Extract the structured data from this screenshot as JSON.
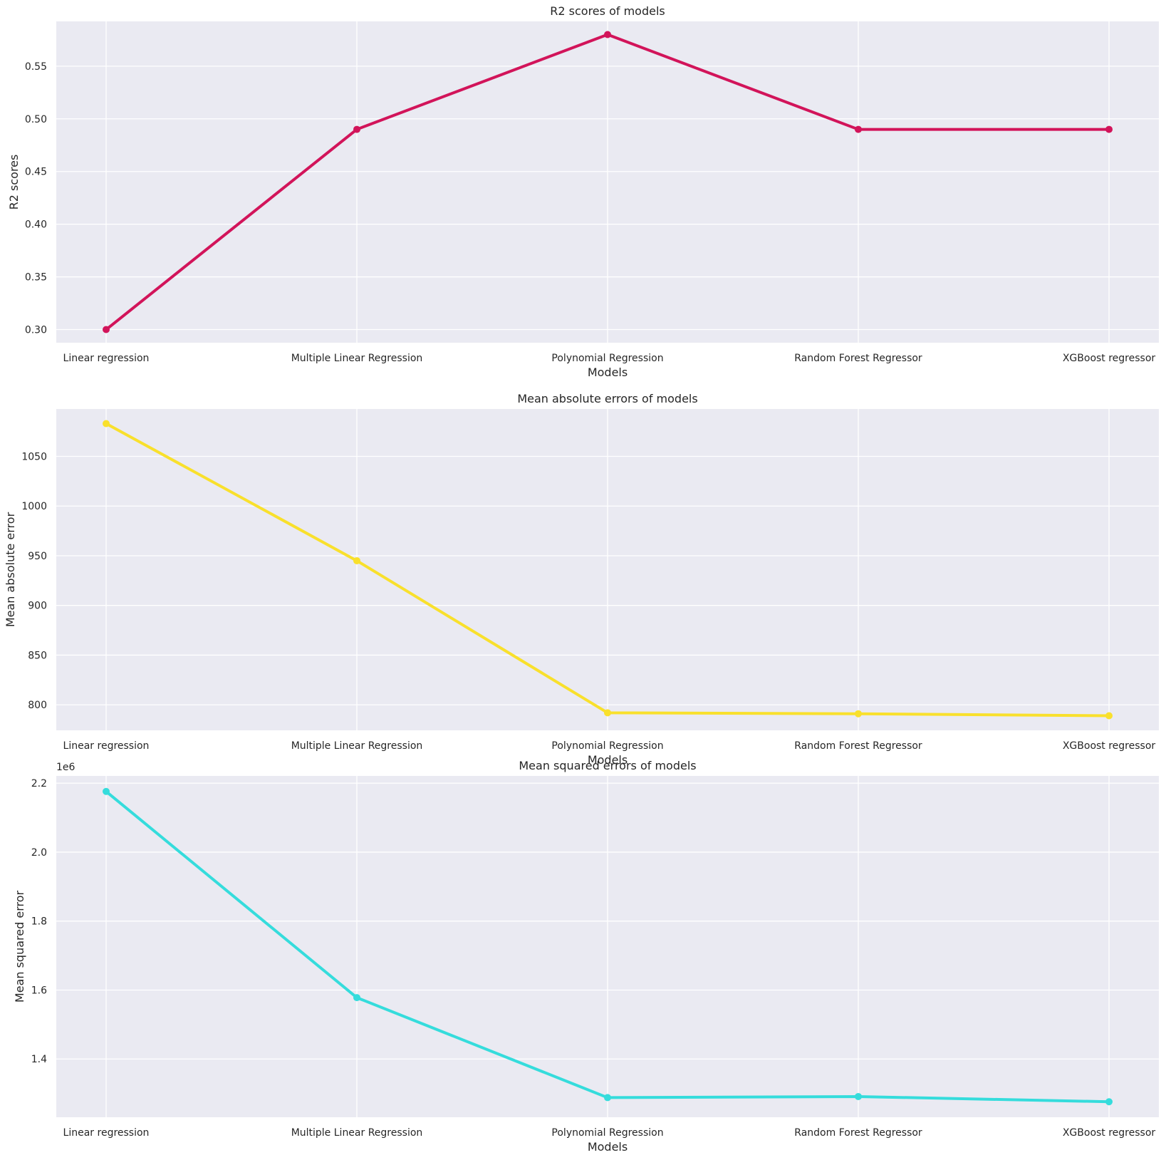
{
  "chart_data": [
    {
      "type": "line",
      "title": "R2 scores of models",
      "xlabel": "Models",
      "ylabel": "R2 scores",
      "categories": [
        "Linear regression",
        "Multiple Linear Regression",
        "Polynomial Regression",
        "Random Forest Regressor",
        "XGBoost regressor"
      ],
      "series": [
        {
          "values": [
            0.3,
            0.49,
            0.58,
            0.49,
            0.49
          ],
          "color": "#d2145a"
        }
      ],
      "ylim": [
        0.2875,
        0.5925
      ],
      "yticks": [
        0.3,
        0.35,
        0.4,
        0.45,
        0.5,
        0.55
      ],
      "ytick_labels": [
        "0.30",
        "0.35",
        "0.40",
        "0.45",
        "0.50",
        "0.55"
      ],
      "offset_text": "",
      "grid": true
    },
    {
      "type": "line",
      "title": "Mean absolute errors of models",
      "xlabel": "Models",
      "ylabel": "Mean absolute error",
      "categories": [
        "Linear regression",
        "Multiple Linear Regression",
        "Polynomial Regression",
        "Random Forest Regressor",
        "XGBoost regressor"
      ],
      "series": [
        {
          "values": [
            1083,
            945,
            792,
            791,
            789
          ],
          "color": "#f9e02c"
        }
      ],
      "ylim": [
        774.3,
        1097.7
      ],
      "yticks": [
        800,
        850,
        900,
        950,
        1000,
        1050
      ],
      "ytick_labels": [
        "800",
        "850",
        "900",
        "950",
        "1000",
        "1050"
      ],
      "offset_text": "",
      "grid": true
    },
    {
      "type": "line",
      "title": "Mean squared errors of models",
      "xlabel": "Models",
      "ylabel": "Mean squared error",
      "categories": [
        "Linear regression",
        "Multiple Linear Regression",
        "Polynomial Regression",
        "Random Forest Regressor",
        "XGBoost regressor"
      ],
      "series": [
        {
          "values": [
            2176000,
            1578000,
            1288000,
            1291000,
            1276000
          ],
          "color": "#35dcdc"
        }
      ],
      "ylim": [
        1231000,
        2221000
      ],
      "yticks": [
        1400000,
        1600000,
        1800000,
        2000000,
        2200000
      ],
      "ytick_labels": [
        "1.4",
        "1.6",
        "1.8",
        "2.0",
        "2.2"
      ],
      "offset_text": "1e6",
      "grid": true
    }
  ]
}
